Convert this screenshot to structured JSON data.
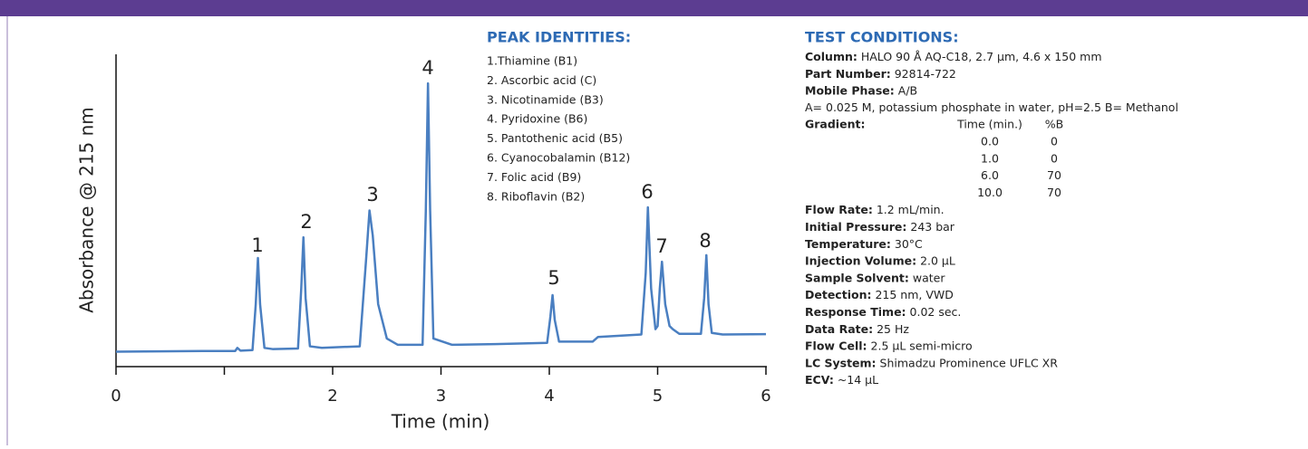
{
  "chart_data": {
    "type": "line",
    "xlabel": "Time (min)",
    "ylabel": "Absorbance @ 215 nm",
    "xlim": [
      0,
      6
    ],
    "ylim": [
      0,
      100
    ],
    "xticks": [
      0,
      {
        "value": 1,
        "label": null
      },
      2,
      3,
      4,
      5,
      6
    ],
    "annotations": [
      "1",
      "2",
      "3",
      "4",
      "5",
      "6",
      "7",
      "8"
    ],
    "series": [
      {
        "color": "#4a7fc1",
        "x": [
          0,
          0.4,
          0.8,
          1.1,
          1.12,
          1.15,
          1.26,
          1.29,
          1.31,
          1.33,
          1.37,
          1.45,
          1.68,
          1.71,
          1.73,
          1.75,
          1.79,
          1.9,
          2.25,
          2.31,
          2.34,
          2.37,
          2.42,
          2.5,
          2.6,
          2.83,
          2.86,
          2.88,
          2.9,
          2.93,
          3.1,
          3.5,
          3.98,
          4.01,
          4.03,
          4.05,
          4.09,
          4.4,
          4.45,
          4.85,
          4.89,
          4.91,
          4.94,
          4.98,
          5.0,
          5.02,
          5.04,
          5.07,
          5.11,
          5.14,
          5.2,
          5.4,
          5.43,
          5.45,
          5.47,
          5.5,
          5.6,
          6.0
        ],
        "values": [
          4.8,
          4.9,
          5.0,
          5.0,
          6.0,
          5.1,
          5.3,
          20,
          34.8,
          20,
          6.0,
          5.6,
          5.8,
          25,
          41.4,
          22,
          6.5,
          6.0,
          6.5,
          35,
          50,
          42,
          20,
          9,
          7,
          7,
          50,
          90.7,
          50,
          9,
          7,
          7.2,
          7.6,
          16,
          22.9,
          15,
          8,
          8,
          9.5,
          10.3,
          30,
          51,
          25,
          12,
          13,
          25,
          33.6,
          20,
          13,
          12,
          10.5,
          10.5,
          22,
          35.7,
          20,
          10.8,
          10.3,
          10.4
        ]
      }
    ]
  },
  "peak_identities": {
    "title": "PEAK IDENTITIES:",
    "items": [
      "1.Thiamine (B1)",
      "2. Ascorbic acid (C)",
      "3. Nicotinamide (B3)",
      "4. Pyridoxine (B6)",
      "5. Pantothenic acid (B5)",
      "6. Cyanocobalamin (B12)",
      "7. Folic acid (B9)",
      "8. Riboflavin (B2)"
    ]
  },
  "test_conditions": {
    "title": "TEST CONDITIONS:",
    "items_top": [
      {
        "label": "Column:",
        "value": "HALO 90 Å AQ-C18, 2.7 µm, 4.6 x 150 mm"
      },
      {
        "label": "Part Number:",
        "value": "92814-722"
      },
      {
        "label": "Mobile Phase:",
        "value": "A/B"
      }
    ],
    "mobile_phase_note": "A= 0.025 M, potassium phosphate in water, pH=2.5  B= Methanol",
    "gradient": {
      "label": "Gradient:",
      "headers": [
        "Time (min.)",
        "%B"
      ],
      "rows": [
        [
          "0.0",
          "0"
        ],
        [
          "1.0",
          "0"
        ],
        [
          "6.0",
          "70"
        ],
        [
          "10.0",
          "70"
        ]
      ]
    },
    "items_bottom": [
      {
        "label": "Flow Rate:",
        "value": "1.2 mL/min."
      },
      {
        "label": "Initial Pressure:",
        "value": "243 bar"
      },
      {
        "label": "Temperature:",
        "value": "30°C"
      },
      {
        "label": "Injection Volume:",
        "value": "2.0 µL"
      },
      {
        "label": "Sample Solvent:",
        "value": "water"
      },
      {
        "label": "Detection:",
        "value": "215 nm, VWD"
      },
      {
        "label": "Response Time:",
        "value": "0.02 sec."
      },
      {
        "label": "Data Rate:",
        "value": "25 Hz"
      },
      {
        "label": "Flow Cell:",
        "value": "2.5 µL semi-micro"
      },
      {
        "label": "LC System:",
        "value": "Shimadzu Prominence UFLC XR"
      },
      {
        "label": "ECV:",
        "value": "~14 µL"
      }
    ]
  }
}
